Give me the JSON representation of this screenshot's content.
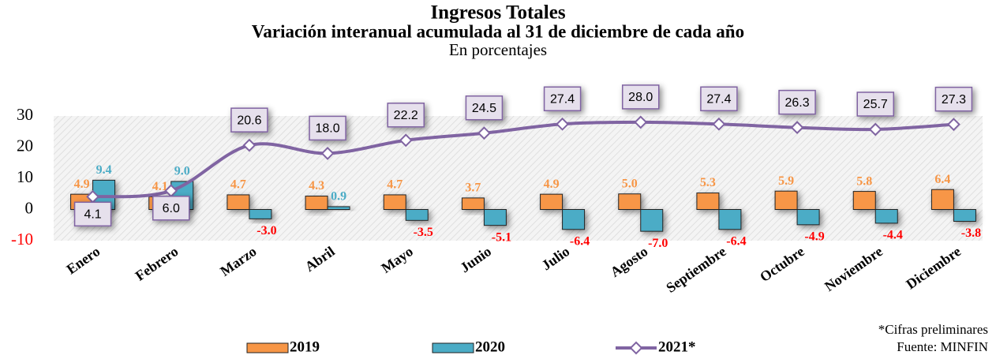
{
  "chart_data": {
    "type": "bar-line",
    "title": "Ingresos Totales",
    "subtitle": "Variación interanual acumulada al 31 de diciembre de cada año",
    "unit_label": "En porcentajes",
    "categories": [
      "Enero",
      "Febrero",
      "Marzo",
      "Abril",
      "Mayo",
      "Junio",
      "Julio",
      "Agosto",
      "Septiembre",
      "Octubre",
      "Noviembre",
      "Diciembre"
    ],
    "series": [
      {
        "name": "2019",
        "type": "bar",
        "color": "#f79646",
        "label_color": "#f79646",
        "values": [
          4.9,
          4.1,
          4.7,
          4.3,
          4.7,
          3.7,
          4.9,
          5.0,
          5.3,
          5.9,
          5.8,
          6.4
        ],
        "value_labels": [
          "4.9",
          "4.1",
          "4.7",
          "4.3",
          "4.7",
          "3.7",
          "4.9",
          "5.0",
          "5.3",
          "5.9",
          "5.8",
          "6.4"
        ]
      },
      {
        "name": "2020",
        "type": "bar",
        "color": "#4bacc6",
        "label_color": "#4bacc6",
        "negative_label_color": "#ff0000",
        "values": [
          9.4,
          9.0,
          -3.0,
          0.9,
          -3.5,
          -5.1,
          -6.4,
          -7.0,
          -6.4,
          -4.9,
          -4.4,
          -3.8
        ],
        "value_labels": [
          "9.4",
          "9.0",
          "-3.0",
          "0.9",
          "-3.5",
          "-5.1",
          "-6.4",
          "-7.0",
          "-6.4",
          "-4.9",
          "-4.4",
          "-3.8"
        ]
      },
      {
        "name": "2021*",
        "type": "line",
        "color": "#8064a2",
        "values": [
          4.1,
          6.0,
          20.6,
          18.0,
          22.2,
          24.5,
          27.4,
          28.0,
          27.4,
          26.3,
          25.7,
          27.3
        ],
        "value_labels": [
          "4.1",
          "6.0",
          "20.6",
          "18.0",
          "22.2",
          "24.5",
          "27.4",
          "28.0",
          "27.4",
          "26.3",
          "25.7",
          "27.3"
        ]
      }
    ],
    "ylim": [
      -10,
      30
    ],
    "yticks": [
      -10,
      0,
      10,
      20,
      30
    ],
    "notes": [
      "*Cifras preliminares",
      "Fuente: MINFIN"
    ]
  }
}
